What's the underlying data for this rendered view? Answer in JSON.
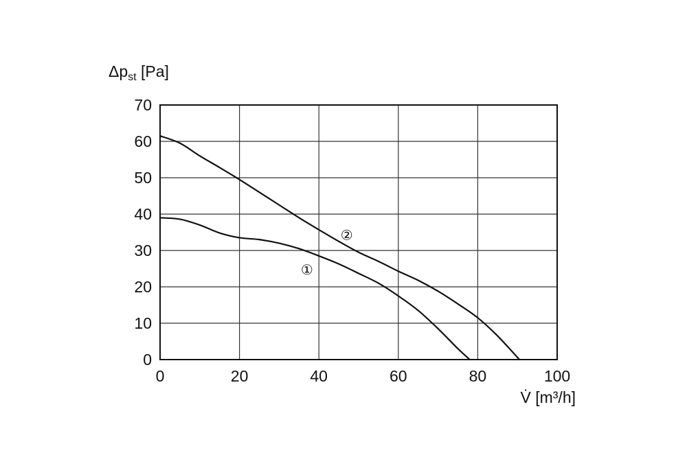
{
  "chart_data": {
    "type": "line",
    "ylabel": "Δp",
    "ylabel_subscript": "st",
    "ylabel_unit": " [Pa]",
    "xlabel": "V̇ [m³/h]",
    "xlim": [
      0,
      100
    ],
    "ylim": [
      0,
      70
    ],
    "x_ticks": [
      0,
      20,
      40,
      60,
      80,
      100
    ],
    "y_ticks": [
      0,
      10,
      20,
      30,
      40,
      50,
      60,
      70
    ],
    "grid": true,
    "legend": "none",
    "series": [
      {
        "name": "①",
        "label_at": [
          37,
          25.5
        ],
        "x": [
          0,
          5,
          10,
          15,
          20,
          25,
          30,
          35,
          40,
          45,
          50,
          55,
          60,
          65,
          70,
          75,
          78
        ],
        "y": [
          39,
          38.6,
          37,
          34.8,
          33.5,
          33,
          32,
          30.5,
          28.5,
          26.3,
          23.7,
          21,
          17.5,
          13.5,
          8.5,
          3,
          0
        ]
      },
      {
        "name": "②",
        "label_at": [
          47,
          35
        ],
        "x": [
          0,
          5,
          10,
          15,
          20,
          25,
          30,
          35,
          40,
          45,
          50,
          55,
          60,
          65,
          70,
          75,
          80,
          85,
          90.5
        ],
        "y": [
          61.5,
          59.5,
          56,
          52.8,
          49.5,
          46,
          42.5,
          39,
          35.7,
          32.5,
          29.5,
          27,
          24.3,
          21.8,
          18.8,
          15.3,
          11.5,
          6.5,
          0
        ]
      }
    ]
  }
}
